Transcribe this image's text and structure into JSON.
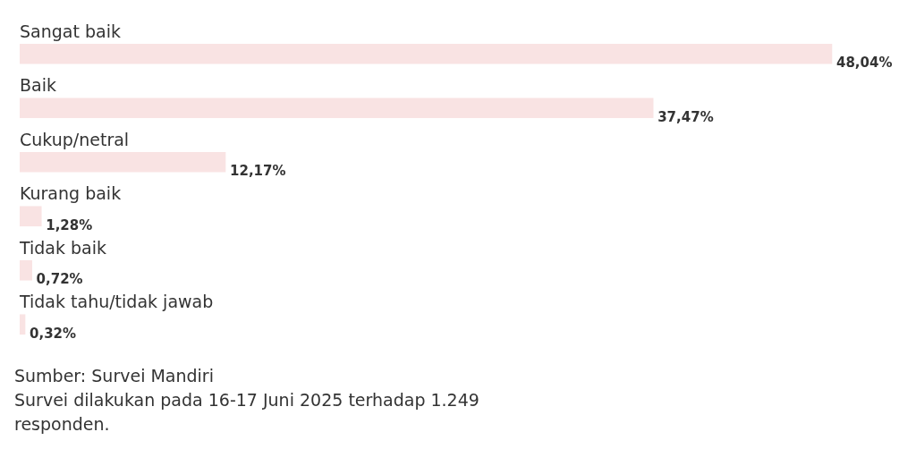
{
  "chart_data": {
    "type": "bar",
    "orientation": "horizontal",
    "categories": [
      "Sangat baik",
      "Baik",
      "Cukup/netral",
      "Kurang baik",
      "Tidak baik",
      "Tidak tahu/tidak jawab"
    ],
    "values": [
      48.04,
      37.47,
      12.17,
      1.28,
      0.72,
      0.32
    ],
    "value_labels": [
      "48,04%",
      "37,47%",
      "12,17%",
      "1,28%",
      "0,72%",
      "0,32%"
    ],
    "color": "#f9e3e3",
    "tick_labels": "y",
    "legend": false,
    "annotations": [
      "Sumber: Survei Mandiri",
      "Survei dilakukan pada 16-17 Juni 2025 terhadap 1.249 responden."
    ]
  }
}
